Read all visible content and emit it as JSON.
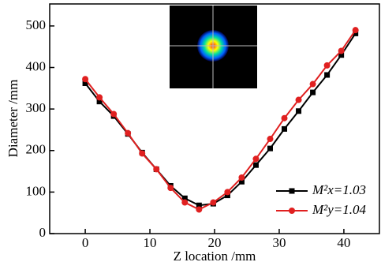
{
  "chart_data": {
    "type": "line",
    "x_label": "Z location /mm",
    "y_label": "Diameter /mm",
    "x": [
      0,
      2.2,
      4.4,
      6.6,
      8.8,
      11,
      13.2,
      15.4,
      17.6,
      19.8,
      22,
      24.2,
      26.4,
      28.6,
      30.8,
      33,
      35.2,
      37.4,
      39.6,
      41.8
    ],
    "series": [
      {
        "name": "M²x=1.03",
        "color": "#000000",
        "marker": "square",
        "values": [
          362,
          318,
          283,
          240,
          195,
          155,
          115,
          85,
          68,
          72,
          92,
          125,
          165,
          205,
          252,
          295,
          340,
          382,
          430,
          482
        ]
      },
      {
        "name": "M²y=1.04",
        "color": "#e02020",
        "marker": "circle",
        "values": [
          372,
          328,
          288,
          242,
          193,
          155,
          110,
          75,
          58,
          75,
          100,
          135,
          180,
          228,
          278,
          322,
          360,
          405,
          440,
          490
        ]
      }
    ],
    "xlim": [
      -5.5,
      45.5
    ],
    "ylim": [
      0,
      553
    ],
    "xticks": [
      0,
      10,
      20,
      30,
      40
    ],
    "yticks": [
      0,
      100,
      200,
      300,
      400,
      500
    ],
    "legend": "lower-right"
  }
}
